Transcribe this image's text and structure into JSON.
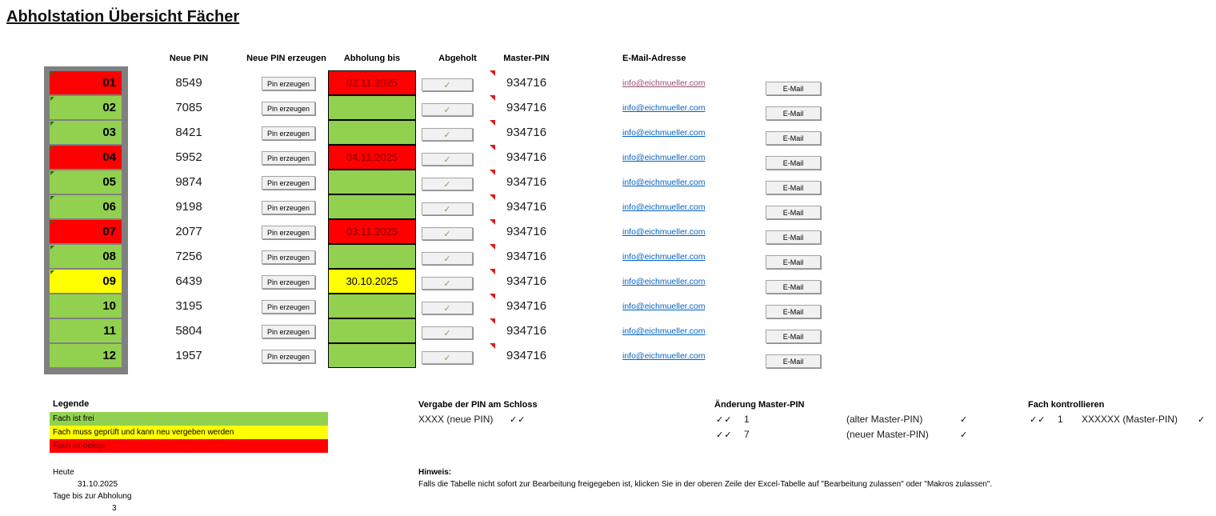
{
  "title": "Abholstation Übersicht Fächer",
  "headers": {
    "neue_pin": "Neue PIN",
    "neue_pin_erzeugen": "Neue PIN erzeugen",
    "abholung_bis": "Abholung bis",
    "abgeholt": "Abgeholt",
    "master_pin": "Master-PIN",
    "email_adresse": "E-Mail-Adresse"
  },
  "labels": {
    "pin_erzeugen": "Pin erzeugen",
    "email_button": "E-Mail",
    "check": "✓"
  },
  "colors": {
    "free_green": "#92D050",
    "check_yellow": "#FFFF00",
    "occupied_red": "#FF0000",
    "frame_gray": "#808080",
    "date_text_dark_red": "#8B0000",
    "link_blue": "#0563C1",
    "link_visited_purple": "#954F72",
    "check_green": "#70AD47"
  },
  "rows": [
    {
      "nr": "01",
      "pin": "8549",
      "due": "02.11.2025",
      "due_color": "red",
      "status": "red",
      "master": "934716",
      "email": "info@eichmueller.com",
      "corner": true,
      "email_visited": true
    },
    {
      "nr": "02",
      "pin": "7085",
      "due": "",
      "due_color": "green",
      "status": "green",
      "master": "934716",
      "email": "info@eichmueller.com",
      "corner": true,
      "email_visited": false
    },
    {
      "nr": "03",
      "pin": "8421",
      "due": "",
      "due_color": "green",
      "status": "green",
      "master": "934716",
      "email": "info@eichmueller.com",
      "corner": true,
      "email_visited": false
    },
    {
      "nr": "04",
      "pin": "5952",
      "due": "04.11.2025",
      "due_color": "red",
      "status": "red",
      "master": "934716",
      "email": "info@eichmueller.com",
      "corner": true,
      "email_visited": false
    },
    {
      "nr": "05",
      "pin": "9874",
      "due": "",
      "due_color": "green",
      "status": "green",
      "master": "934716",
      "email": "info@eichmueller.com",
      "corner": true,
      "email_visited": false
    },
    {
      "nr": "06",
      "pin": "9198",
      "due": "",
      "due_color": "green",
      "status": "green",
      "master": "934716",
      "email": "info@eichmueller.com",
      "corner": true,
      "email_visited": false
    },
    {
      "nr": "07",
      "pin": "2077",
      "due": "03.11.2025",
      "due_color": "red",
      "status": "red",
      "master": "934716",
      "email": "info@eichmueller.com",
      "corner": true,
      "email_visited": false
    },
    {
      "nr": "08",
      "pin": "7256",
      "due": "",
      "due_color": "green",
      "status": "green",
      "master": "934716",
      "email": "info@eichmueller.com",
      "corner": true,
      "email_visited": false
    },
    {
      "nr": "09",
      "pin": "6439",
      "due": "30.10.2025",
      "due_color": "yellow",
      "status": "yellow",
      "master": "934716",
      "email": "info@eichmueller.com",
      "corner": true,
      "email_visited": false
    },
    {
      "nr": "10",
      "pin": "3195",
      "due": "",
      "due_color": "green",
      "status": "green",
      "master": "934716",
      "email": "info@eichmueller.com",
      "corner": false,
      "email_visited": false
    },
    {
      "nr": "11",
      "pin": "5804",
      "due": "",
      "due_color": "green",
      "status": "green",
      "master": "934716",
      "email": "info@eichmueller.com",
      "corner": false,
      "email_visited": false
    },
    {
      "nr": "12",
      "pin": "1957",
      "due": "",
      "due_color": "green",
      "status": "green",
      "master": "934716",
      "email": "info@eichmueller.com",
      "corner": false,
      "email_visited": false
    }
  ],
  "legend": {
    "title": "Legende",
    "items": [
      {
        "label": "Fach ist frei",
        "color": "#92D050"
      },
      {
        "label": "Fach muss geprüft und kann neu vergeben werden",
        "color": "#FFFF00"
      },
      {
        "label": "Fach ist belegt",
        "color": "#FF0000"
      }
    ]
  },
  "today": {
    "label": "Heute",
    "date": "31.10.2025",
    "days_label": "Tage bis zur Abholung",
    "days": "3"
  },
  "vergabe": {
    "title": "Vergabe der PIN am Schloss",
    "code": "XXXX (neue PIN)",
    "checks": "✓✓"
  },
  "aenderung": {
    "title": "Änderung Master-PIN",
    "rows": [
      {
        "checks": "✓✓",
        "digit": "1",
        "label": "(alter Master-PIN)",
        "confirm": "✓"
      },
      {
        "checks": "✓✓",
        "digit": "7",
        "label": "(neuer Master-PIN)",
        "confirm": "✓"
      }
    ]
  },
  "kontrollieren": {
    "title": "Fach kontrollieren",
    "checks": "✓✓",
    "digit": "1",
    "label": "XXXXXX (Master-PIN)",
    "confirm": "✓"
  },
  "hinweis": {
    "title": "Hinweis:",
    "body": "Falls die Tabelle nicht sofort zur Bearbeitung freigegeben ist, klicken Sie in der oberen Zeile der Excel-Tabelle auf \"Bearbeitung zulassen\" oder \"Makros zulassen\"."
  }
}
